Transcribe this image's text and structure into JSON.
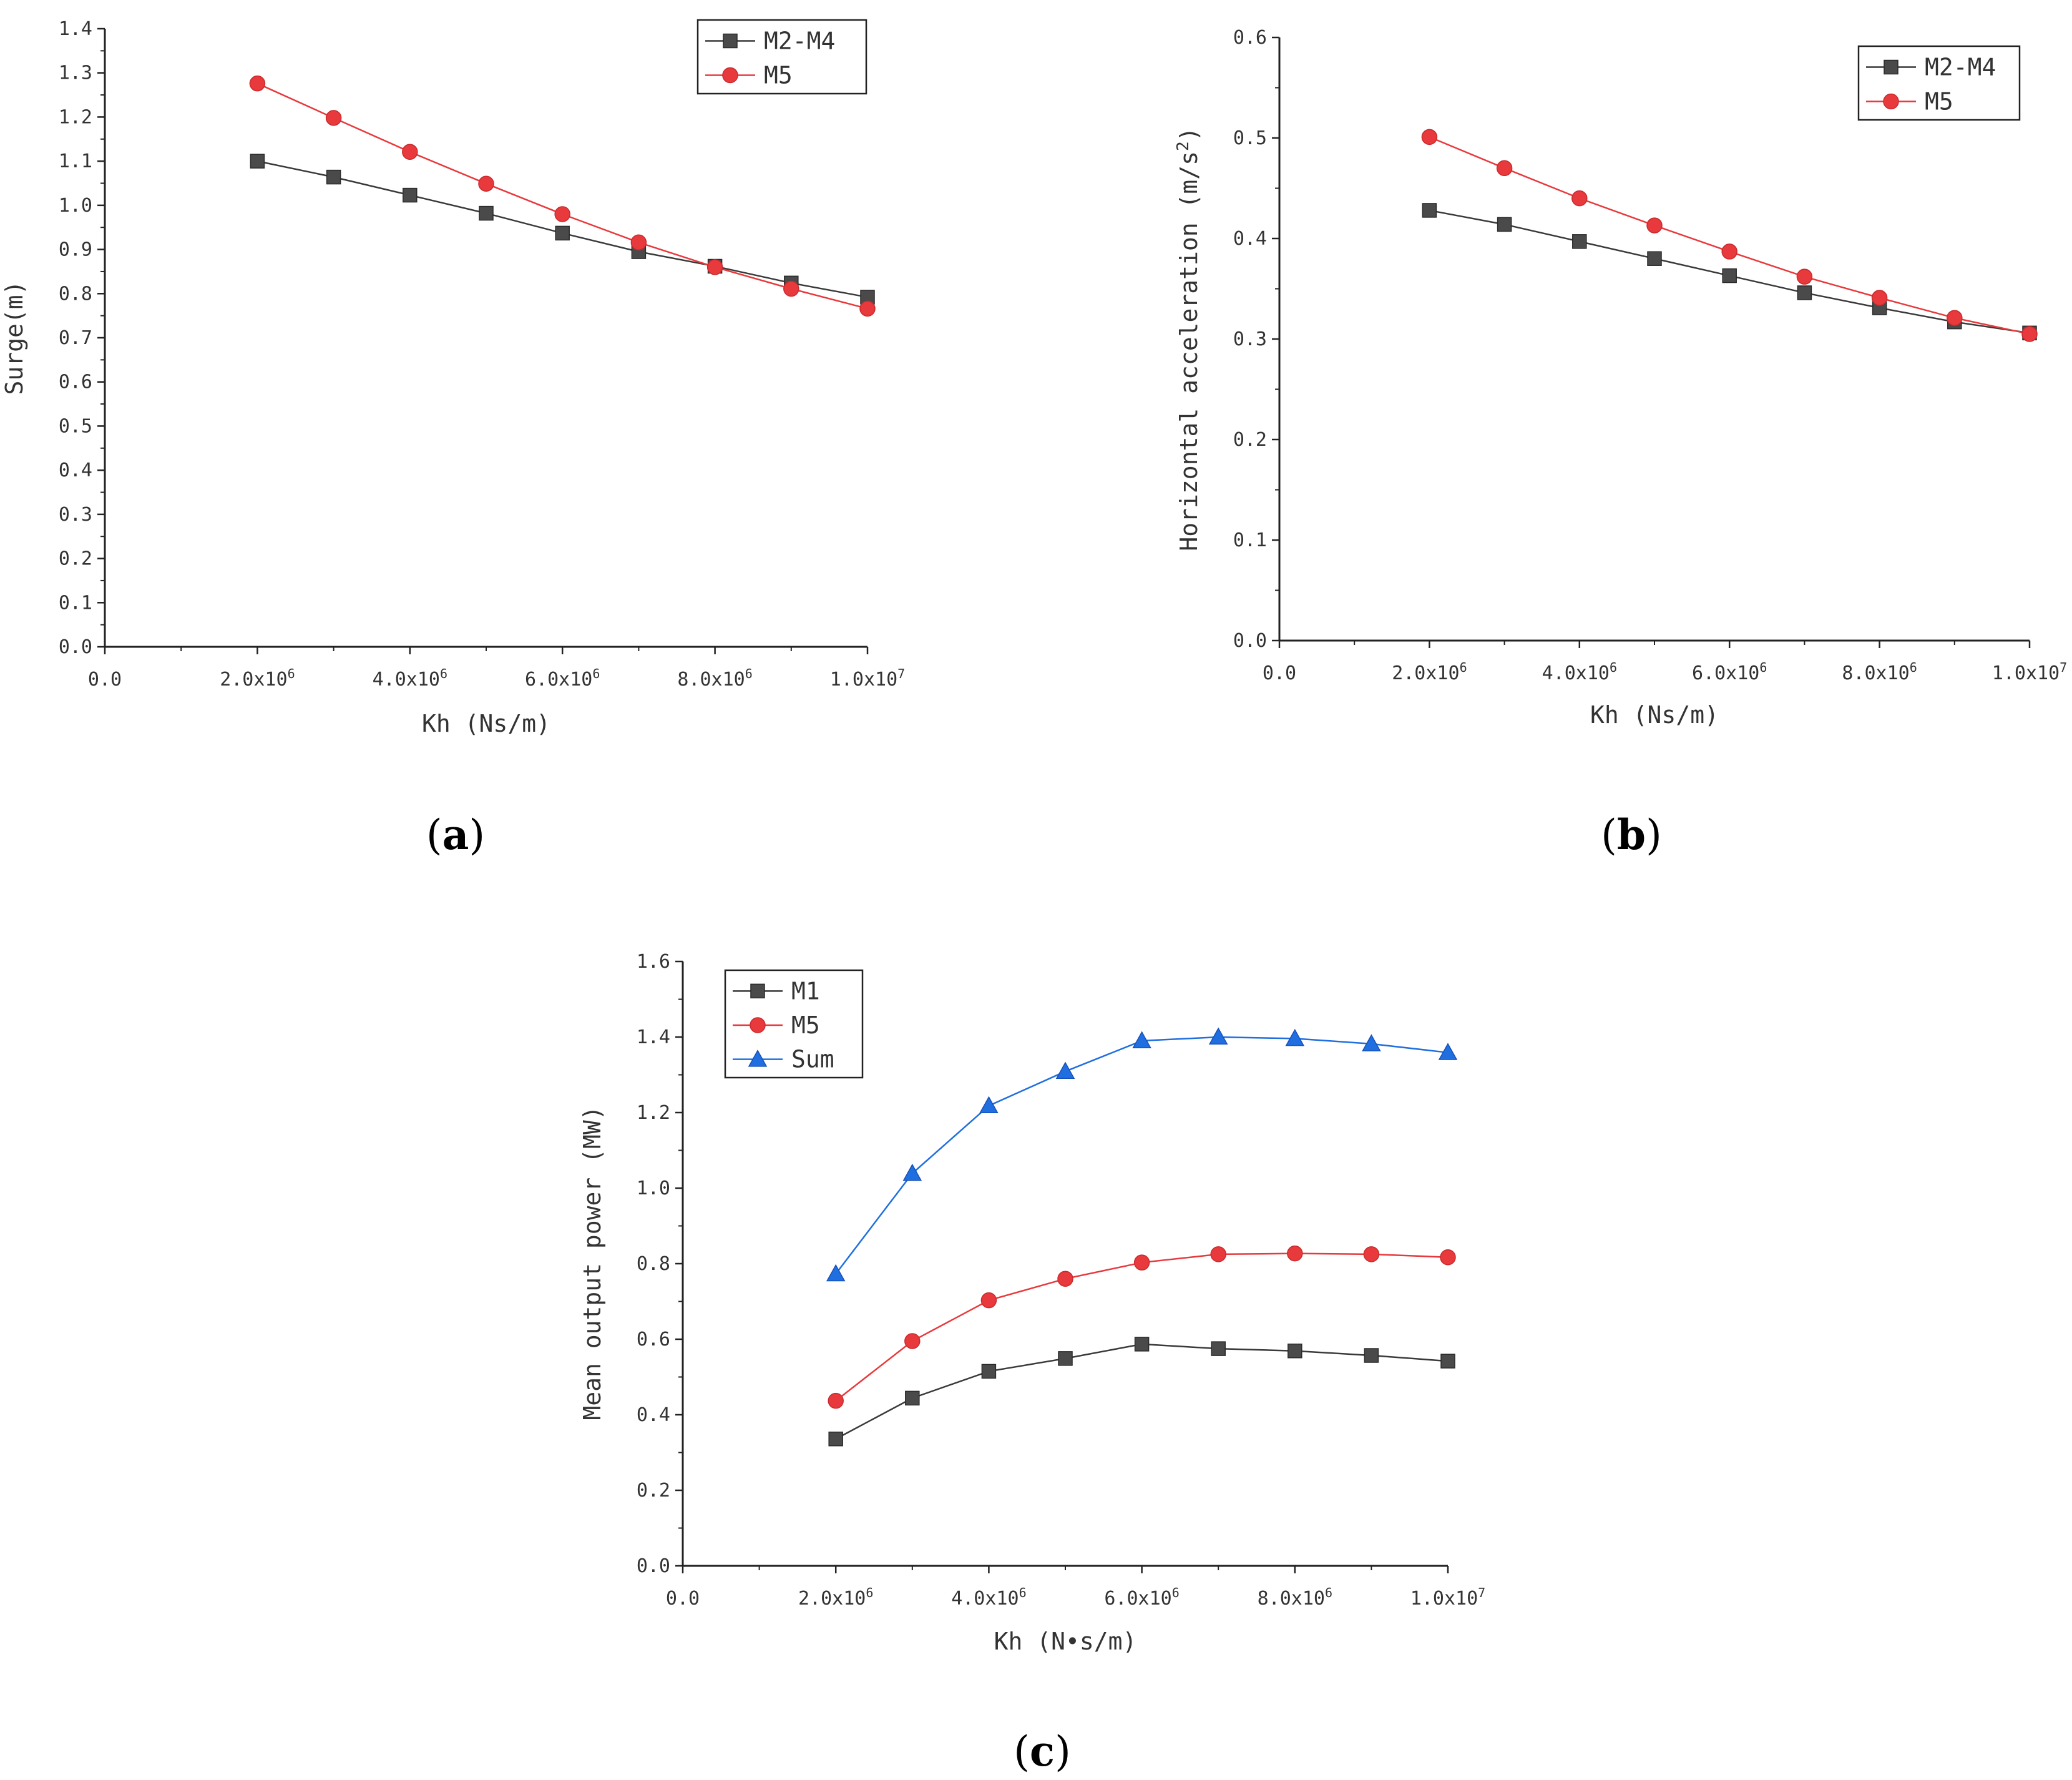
{
  "chart_data": [
    {
      "panel": "(a)",
      "panel_letter": "a",
      "type": "line",
      "ylabel": "Surge(m)",
      "xlabel": "Kh (Ns/m)",
      "xlim": [
        0,
        10000000
      ],
      "ylim": [
        0,
        1.4
      ],
      "xticks": [
        {
          "v": 0,
          "label": "0.0"
        },
        {
          "v": 2000000,
          "label": "2.0x10",
          "exp": "6"
        },
        {
          "v": 4000000,
          "label": "4.0x10",
          "exp": "6"
        },
        {
          "v": 6000000,
          "label": "6.0x10",
          "exp": "6"
        },
        {
          "v": 8000000,
          "label": "8.0x10",
          "exp": "6"
        },
        {
          "v": 10000000,
          "label": "1.0x10",
          "exp": "7"
        }
      ],
      "yticks": [
        {
          "v": 0.0,
          "label": "0.0"
        },
        {
          "v": 0.1,
          "label": "0.1"
        },
        {
          "v": 0.2,
          "label": "0.2"
        },
        {
          "v": 0.3,
          "label": "0.3"
        },
        {
          "v": 0.4,
          "label": "0.4"
        },
        {
          "v": 0.5,
          "label": "0.5"
        },
        {
          "v": 0.6,
          "label": "0.6"
        },
        {
          "v": 0.7,
          "label": "0.7"
        },
        {
          "v": 0.8,
          "label": "0.8"
        },
        {
          "v": 0.9,
          "label": "0.9"
        },
        {
          "v": 1.0,
          "label": "1.0"
        },
        {
          "v": 1.1,
          "label": "1.1"
        },
        {
          "v": 1.2,
          "label": "1.2"
        },
        {
          "v": 1.3,
          "label": "1.3"
        },
        {
          "v": 1.4,
          "label": "1.4"
        }
      ],
      "x": [
        2000000,
        3000000,
        4000000,
        5000000,
        6000000,
        7000000,
        8000000,
        9000000,
        10000000
      ],
      "series": [
        {
          "name": "M2-M4",
          "color": "#3a3a3a",
          "marker": "square",
          "values": [
            1.1,
            1.064,
            1.023,
            0.982,
            0.937,
            0.895,
            0.862,
            0.824,
            0.792
          ]
        },
        {
          "name": "M5",
          "color": "#e8393c",
          "marker": "circle",
          "values": [
            1.276,
            1.198,
            1.121,
            1.049,
            0.98,
            0.916,
            0.86,
            0.811,
            0.766
          ]
        }
      ],
      "legend": "top-right"
    },
    {
      "panel": "(b)",
      "panel_letter": "b",
      "type": "line",
      "ylabel": "Horizontal acceleration (m/s",
      "ylabel_sup": "2",
      "ylabel_end": ")",
      "xlabel": "Kh (Ns/m)",
      "xlim": [
        0,
        10000000
      ],
      "ylim": [
        0,
        0.6
      ],
      "xticks": [
        {
          "v": 0,
          "label": "0.0"
        },
        {
          "v": 2000000,
          "label": "2.0x10",
          "exp": "6"
        },
        {
          "v": 4000000,
          "label": "4.0x10",
          "exp": "6"
        },
        {
          "v": 6000000,
          "label": "6.0x10",
          "exp": "6"
        },
        {
          "v": 8000000,
          "label": "8.0x10",
          "exp": "6"
        },
        {
          "v": 10000000,
          "label": "1.0x10",
          "exp": "7"
        }
      ],
      "yticks": [
        {
          "v": 0.0,
          "label": "0.0"
        },
        {
          "v": 0.1,
          "label": "0.1"
        },
        {
          "v": 0.2,
          "label": "0.2"
        },
        {
          "v": 0.3,
          "label": "0.3"
        },
        {
          "v": 0.4,
          "label": "0.4"
        },
        {
          "v": 0.5,
          "label": "0.5"
        },
        {
          "v": 0.6,
          "label": "0.6"
        }
      ],
      "x": [
        2000000,
        3000000,
        4000000,
        5000000,
        6000000,
        7000000,
        8000000,
        9000000,
        10000000
      ],
      "series": [
        {
          "name": "M2-M4",
          "color": "#3a3a3a",
          "marker": "square",
          "values": [
            0.428,
            0.414,
            0.397,
            0.38,
            0.363,
            0.346,
            0.331,
            0.317,
            0.306
          ]
        },
        {
          "name": "M5",
          "color": "#e8393c",
          "marker": "circle",
          "values": [
            0.501,
            0.47,
            0.44,
            0.413,
            0.387,
            0.362,
            0.341,
            0.321,
            0.305
          ]
        }
      ],
      "legend": "top-right"
    },
    {
      "panel": "(c)",
      "panel_letter": "c",
      "type": "line",
      "ylabel": "Mean output power (MW)",
      "xlabel": "Kh (N•s/m)",
      "xlim": [
        0,
        10000000
      ],
      "ylim": [
        0,
        1.6
      ],
      "xticks": [
        {
          "v": 0,
          "label": "0.0"
        },
        {
          "v": 2000000,
          "label": "2.0x10",
          "exp": "6"
        },
        {
          "v": 4000000,
          "label": "4.0x10",
          "exp": "6"
        },
        {
          "v": 6000000,
          "label": "6.0x10",
          "exp": "6"
        },
        {
          "v": 8000000,
          "label": "8.0x10",
          "exp": "6"
        },
        {
          "v": 10000000,
          "label": "1.0x10",
          "exp": "7"
        }
      ],
      "yticks": [
        {
          "v": 0.0,
          "label": "0.0"
        },
        {
          "v": 0.2,
          "label": "0.2"
        },
        {
          "v": 0.4,
          "label": "0.4"
        },
        {
          "v": 0.6,
          "label": "0.6"
        },
        {
          "v": 0.8,
          "label": "0.8"
        },
        {
          "v": 1.0,
          "label": "1.0"
        },
        {
          "v": 1.2,
          "label": "1.2"
        },
        {
          "v": 1.4,
          "label": "1.4"
        },
        {
          "v": 1.6,
          "label": "1.6"
        }
      ],
      "x": [
        2000000,
        3000000,
        4000000,
        5000000,
        6000000,
        7000000,
        8000000,
        9000000,
        10000000
      ],
      "series": [
        {
          "name": "M1",
          "color": "#3a3a3a",
          "marker": "square",
          "values": [
            0.336,
            0.444,
            0.515,
            0.549,
            0.587,
            0.575,
            0.569,
            0.557,
            0.542
          ]
        },
        {
          "name": "M5",
          "color": "#e8393c",
          "marker": "circle",
          "values": [
            0.437,
            0.595,
            0.703,
            0.76,
            0.803,
            0.825,
            0.827,
            0.825,
            0.817
          ]
        },
        {
          "name": "Sum",
          "color": "#1f6fe0",
          "marker": "triangle",
          "values": [
            0.773,
            1.039,
            1.218,
            1.309,
            1.39,
            1.4,
            1.396,
            1.382,
            1.359
          ]
        }
      ],
      "legend": "top-left"
    }
  ]
}
